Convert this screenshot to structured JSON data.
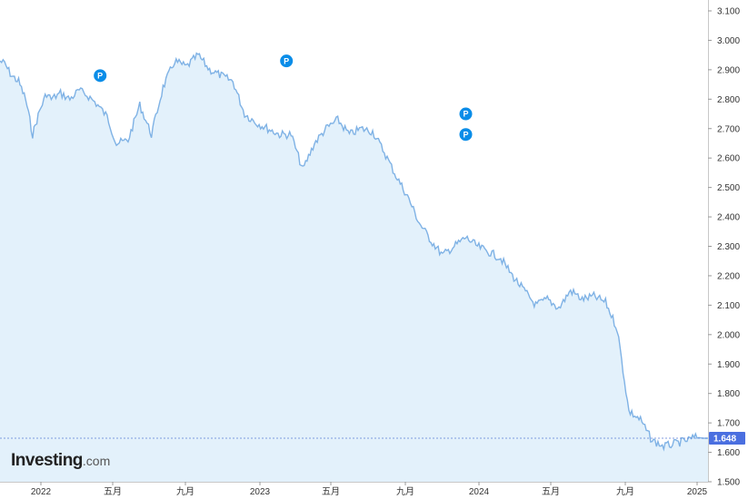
{
  "brand": {
    "name": "Investing",
    "suffix": ".com"
  },
  "current_label": "1.648",
  "colors": {
    "line": "#7fb2e5",
    "fill": "#e3f1fb",
    "marker": "#0a8de8",
    "current_badge": "#4a6fe0",
    "grid": "#dddddd"
  },
  "marker_icon": "P",
  "chart_data": {
    "type": "area",
    "ylim": [
      1.5,
      3.1
    ],
    "yticks": [
      "1.500",
      "1.600",
      "1.700",
      "1.800",
      "1.900",
      "2.000",
      "2.100",
      "2.200",
      "2.300",
      "2.400",
      "2.500",
      "2.600",
      "2.700",
      "2.800",
      "2.900",
      "3.000",
      "3.100"
    ],
    "xticks": [
      "2022",
      "五月",
      "九月",
      "2023",
      "五月",
      "九月",
      "2024",
      "五月",
      "九月",
      "2025"
    ],
    "series": [
      {
        "x": [
          0,
          0.02,
          0.05,
          0.08,
          0.11,
          0.14,
          0.17,
          0.2,
          0.22,
          0.26,
          0.3,
          0.34,
          0.38,
          0.42,
          0.46,
          0.5,
          0.55,
          0.6,
          0.65,
          0.7,
          0.75,
          0.8,
          0.85,
          0.9,
          0.95,
          1.0,
          1.05,
          1.1,
          1.15,
          1.2,
          1.25,
          1.3,
          1.35,
          1.4,
          1.45,
          1.5,
          1.55,
          1.6,
          1.65,
          1.7,
          1.75,
          1.8,
          1.85,
          1.9,
          1.95,
          2.0,
          2.05,
          2.1,
          2.15,
          2.2,
          2.25,
          2.3,
          2.35,
          2.4,
          2.45,
          2.5,
          2.55,
          2.6,
          2.65,
          2.7,
          2.75,
          2.8,
          2.85,
          2.9,
          2.95,
          2.98,
          3.0,
          3.02,
          3.04
        ],
        "values": [
          2.93,
          2.92,
          2.88,
          2.86,
          2.8,
          2.68,
          2.76,
          2.82,
          2.8,
          2.82,
          2.8,
          2.83,
          2.81,
          2.78,
          2.74,
          2.65,
          2.66,
          2.78,
          2.68,
          2.84,
          2.93,
          2.91,
          2.95,
          2.9,
          2.88,
          2.86,
          2.75,
          2.72,
          2.7,
          2.68,
          2.68,
          2.56,
          2.65,
          2.7,
          2.73,
          2.68,
          2.7,
          2.69,
          2.62,
          2.54,
          2.47,
          2.38,
          2.32,
          2.27,
          2.3,
          2.33,
          2.3,
          2.28,
          2.26,
          2.2,
          2.15,
          2.1,
          2.12,
          2.09,
          2.15,
          2.12,
          2.13,
          2.11,
          2.02,
          1.74,
          1.71,
          1.64,
          1.62,
          1.63,
          1.64,
          1.65,
          1.65,
          1.648,
          1.648
        ]
      }
    ],
    "markers": [
      {
        "x": 0.43,
        "y": 2.88,
        "label": "P"
      },
      {
        "x": 1.23,
        "y": 2.93,
        "label": "P"
      },
      {
        "x": 2.0,
        "y": 2.75,
        "label": "P"
      },
      {
        "x": 2.0,
        "y": 2.68,
        "label": "P"
      }
    ],
    "current_value": 1.648,
    "grid": false,
    "legend": "none"
  }
}
